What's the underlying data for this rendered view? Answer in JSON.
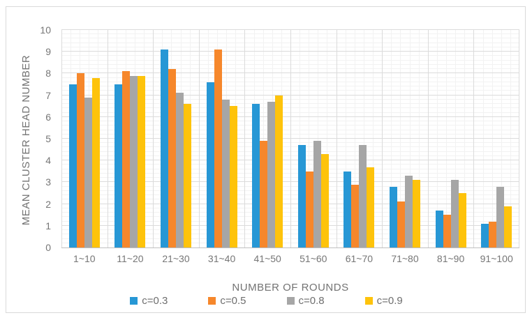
{
  "chart_data": {
    "type": "bar",
    "title": "",
    "xlabel": "NUMBER OF ROUNDS",
    "ylabel": "MEAN CLUSTER HEAD NUMBER",
    "categories": [
      "1~10",
      "11~20",
      "21~30",
      "31~40",
      "41~50",
      "51~60",
      "61~70",
      "71~80",
      "81~90",
      "91~100"
    ],
    "series": [
      {
        "name": "c=0.3",
        "color": "#2797d5",
        "values": [
          7.5,
          7.5,
          9.1,
          7.6,
          6.6,
          4.7,
          3.5,
          2.8,
          1.7,
          1.1
        ]
      },
      {
        "name": "c=0.5",
        "color": "#f6872b",
        "values": [
          8.0,
          8.1,
          8.2,
          9.1,
          4.9,
          3.5,
          2.9,
          2.1,
          1.5,
          1.2
        ]
      },
      {
        "name": "c=0.8",
        "color": "#a6a6a6",
        "values": [
          6.9,
          7.9,
          7.1,
          6.8,
          6.7,
          4.9,
          4.7,
          3.3,
          3.1,
          2.8
        ]
      },
      {
        "name": "c=0.9",
        "color": "#fec30b",
        "values": [
          7.8,
          7.9,
          6.6,
          6.5,
          7.0,
          4.3,
          3.7,
          3.1,
          2.5,
          1.9
        ]
      }
    ],
    "ylim": [
      0,
      10
    ],
    "y_ticks": [
      "0",
      "1",
      "2",
      "3",
      "4",
      "5",
      "6",
      "7",
      "8",
      "9",
      "10"
    ],
    "y_major_step": 1,
    "y_minor_step": 0.2,
    "grid": "major and minor, horizontal and vertical",
    "legend_position": "bottom"
  },
  "colors": {
    "grid_major": "#dbdbdb",
    "grid_minor": "#f2f2f2",
    "axis_line": "#bfbfbf",
    "tick_text": "#767676",
    "title_text": "#737373",
    "frame_border": "#d9d9d9",
    "background": "#ffffff"
  }
}
